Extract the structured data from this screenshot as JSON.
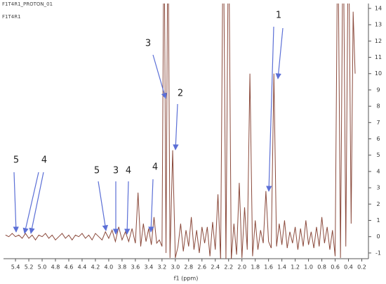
{
  "chart_data": {
    "type": "line",
    "title": "F1T4R1_PROTON_01",
    "subtitle": "F1T4R1",
    "x_label": "f1 (ppm)",
    "x": [
      5.55,
      5.5,
      5.45,
      5.4,
      5.35,
      5.3,
      5.25,
      5.2,
      5.15,
      5.1,
      5.05,
      5.0,
      4.95,
      4.9,
      4.85,
      4.8,
      4.75,
      4.7,
      4.65,
      4.6,
      4.55,
      4.5,
      4.45,
      4.4,
      4.35,
      4.3,
      4.25,
      4.2,
      4.15,
      4.1,
      4.05,
      4.0,
      3.95,
      3.9,
      3.85,
      3.8,
      3.75,
      3.7,
      3.65,
      3.6,
      3.56,
      3.52,
      3.48,
      3.44,
      3.4,
      3.36,
      3.32,
      3.28,
      3.24,
      3.2,
      3.17,
      3.14,
      3.11,
      3.08,
      3.04,
      3.0,
      2.96,
      2.92,
      2.88,
      2.84,
      2.8,
      2.76,
      2.72,
      2.68,
      2.64,
      2.6,
      2.56,
      2.52,
      2.48,
      2.44,
      2.4,
      2.36,
      2.32,
      2.28,
      2.24,
      2.2,
      2.16,
      2.12,
      2.08,
      2.04,
      2.0,
      1.96,
      1.92,
      1.88,
      1.84,
      1.8,
      1.76,
      1.72,
      1.68,
      1.64,
      1.6,
      1.56,
      1.52,
      1.48,
      1.44,
      1.4,
      1.36,
      1.32,
      1.28,
      1.24,
      1.2,
      1.16,
      1.12,
      1.08,
      1.04,
      1.0,
      0.96,
      0.92,
      0.88,
      0.84,
      0.8,
      0.76,
      0.72,
      0.68,
      0.64,
      0.6,
      0.56,
      0.52,
      0.48,
      0.44,
      0.4,
      0.36,
      0.33,
      0.3
    ],
    "series": [
      {
        "color": "#8b4a3c",
        "values": [
          0.1,
          0.0,
          0.2,
          0.0,
          0.1,
          -0.1,
          0.2,
          -0.1,
          0.1,
          -0.2,
          0.1,
          0.0,
          0.2,
          -0.1,
          0.1,
          -0.2,
          0.0,
          0.2,
          -0.1,
          0.1,
          -0.2,
          0.1,
          0.0,
          0.2,
          -0.1,
          0.1,
          -0.2,
          0.2,
          0.0,
          -0.2,
          0.3,
          -0.1,
          0.4,
          -0.3,
          0.6,
          -0.2,
          0.3,
          -0.3,
          0.5,
          -0.4,
          2.7,
          -0.6,
          0.8,
          -0.3,
          0.5,
          -0.5,
          1.2,
          -0.4,
          -0.2,
          -0.6,
          20,
          -1.0,
          20,
          -1.3,
          5.3,
          -1.3,
          -0.6,
          0.8,
          -0.9,
          0.4,
          -0.6,
          1.2,
          -0.8,
          0.4,
          -1.0,
          0.6,
          -0.4,
          0.6,
          -1.2,
          0.9,
          -0.8,
          2.6,
          -1.4,
          20,
          -1.4,
          20,
          -1.4,
          0.8,
          -1.1,
          3.3,
          -1.3,
          1.8,
          -0.8,
          10.0,
          -1.2,
          1.0,
          -0.8,
          0.4,
          -0.4,
          2.8,
          -0.3,
          -0.7,
          10.0,
          -0.6,
          0.8,
          -0.5,
          1.0,
          -0.7,
          0.3,
          -0.4,
          0.6,
          -0.8,
          0.5,
          -0.6,
          1.0,
          -0.5,
          0.3,
          -0.7,
          0.6,
          -0.6,
          1.2,
          -0.4,
          0.6,
          -0.8,
          0.4,
          -1.2,
          20,
          -1.3,
          20,
          -0.6,
          20,
          0.8,
          13.8,
          10.0
        ]
      }
    ],
    "xlim": [
      5.58,
      0.1
    ],
    "xticks": [
      5.4,
      5.2,
      {
        "value": 5,
        "label": "5.0"
      },
      4.8,
      4.6,
      4.4,
      4.2,
      {
        "value": 4,
        "label": "4.0"
      },
      3.8,
      3.6,
      3.4,
      3.2,
      {
        "value": 3,
        "label": "3.0"
      },
      2.8,
      2.6,
      2.4,
      2.2,
      {
        "value": 2,
        "label": "2.0"
      },
      1.8,
      1.6,
      1.4,
      1.2,
      {
        "value": 1,
        "label": "1.0"
      },
      0.8,
      0.6,
      0.4,
      0.2
    ],
    "ylim": [
      -1.35,
      14.3
    ],
    "yticks": [
      -1,
      0,
      1,
      2,
      3,
      4,
      5,
      6,
      7,
      8,
      9,
      10,
      11,
      12,
      13,
      14
    ],
    "annotations": [
      "1",
      "2",
      "3",
      "5",
      "4",
      "5",
      "3",
      "4",
      "4"
    ],
    "annotation_color": "#5b6fd6"
  }
}
